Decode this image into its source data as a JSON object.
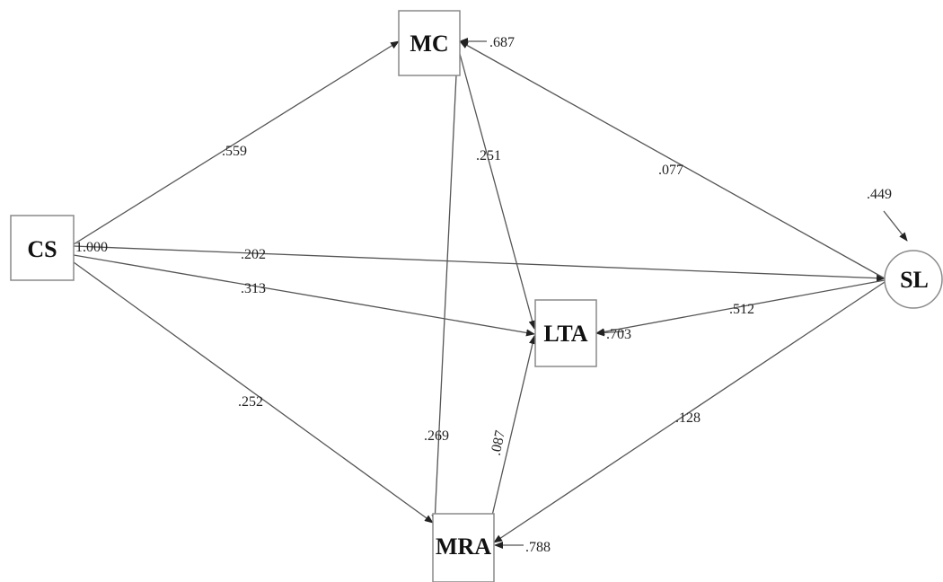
{
  "nodes": {
    "MC": "MC",
    "CS": "CS",
    "LTA": "LTA",
    "MRA": "MRA",
    "SL": "SL"
  },
  "error_terms": {
    "MC": ".687",
    "LTA": ".703",
    "MRA": ".788",
    "SL": ".449"
  },
  "paths": [
    {
      "from": "CS",
      "to": "MC",
      "label": ".559"
    },
    {
      "from": "CS",
      "to": "SL",
      "label": ".202"
    },
    {
      "from": "CS",
      "to": "LTA",
      "label": ".313"
    },
    {
      "from": "CS",
      "to": "MRA",
      "label": ".252"
    },
    {
      "from": "MC",
      "to": "LTA",
      "label": ".251"
    },
    {
      "from": "MC",
      "to": "MRA",
      "label": ".269"
    },
    {
      "from": "SL",
      "to": "MC",
      "label": ".077"
    },
    {
      "from": "SL",
      "to": "LTA",
      "label": ".512"
    },
    {
      "from": "SL",
      "to": "MRA",
      "label": ".128"
    },
    {
      "from": "MRA",
      "to": "LTA",
      "label": ".087"
    }
  ],
  "cs_variance": "1.000"
}
